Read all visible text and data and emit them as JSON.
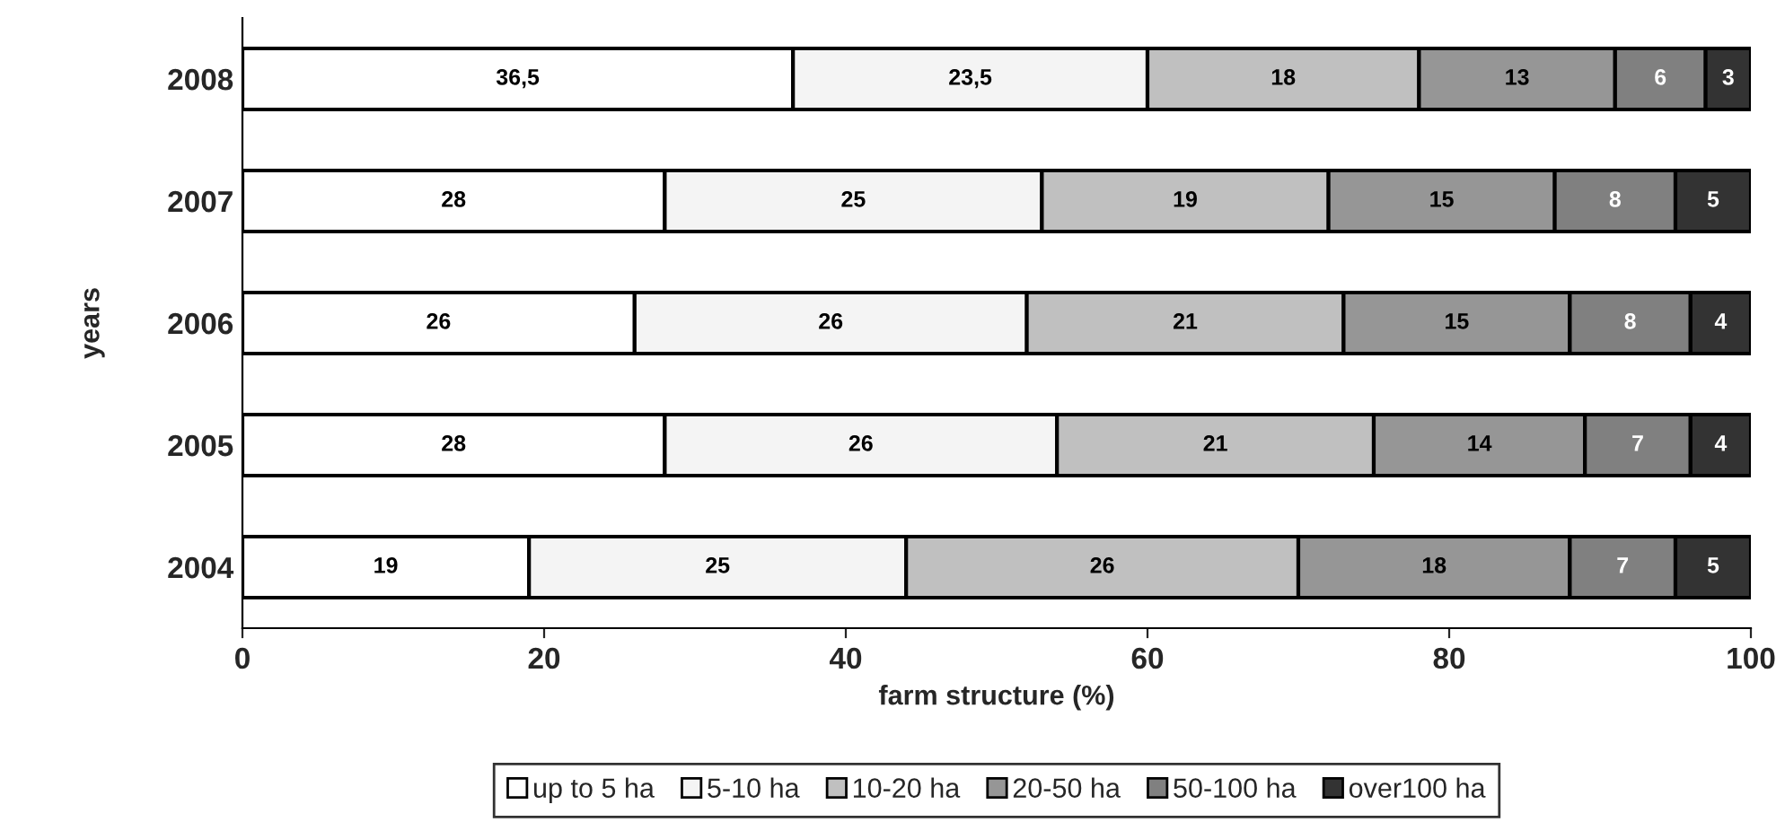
{
  "chart_data": {
    "type": "bar",
    "orientation": "horizontal",
    "stacked": true,
    "categories": [
      "2008",
      "2007",
      "2006",
      "2005",
      "2004"
    ],
    "series": [
      {
        "name": "up to 5 ha",
        "color": "#ffffff",
        "values": [
          36.5,
          28,
          26,
          28,
          19
        ],
        "value_labels": [
          "36,5",
          "28",
          "26",
          "28",
          "19"
        ]
      },
      {
        "name": "5-10 ha",
        "color": "#f4f4f4",
        "values": [
          23.5,
          25,
          26,
          26,
          25
        ],
        "value_labels": [
          "23,5",
          "25",
          "26",
          "26",
          "25"
        ]
      },
      {
        "name": "10-20 ha",
        "color": "#c0c0c0",
        "values": [
          18,
          19,
          21,
          21,
          26
        ],
        "value_labels": [
          "18",
          "19",
          "21",
          "21",
          "26"
        ]
      },
      {
        "name": "20-50 ha",
        "color": "#969696",
        "values": [
          13,
          15,
          15,
          14,
          18
        ],
        "value_labels": [
          "13",
          "15",
          "15",
          "14",
          "18"
        ]
      },
      {
        "name": "50-100 ha",
        "color": "#808080",
        "values": [
          6,
          8,
          8,
          7,
          7
        ],
        "value_labels": [
          "6",
          "8",
          "8",
          "7",
          "7"
        ]
      },
      {
        "name": "over100 ha",
        "color": "#333333",
        "values": [
          3,
          5,
          4,
          4,
          5
        ],
        "value_labels": [
          "3",
          "5",
          "4",
          "4",
          "5"
        ]
      }
    ],
    "xlabel": "farm structure (%)",
    "ylabel": "years",
    "xlim": [
      0,
      100
    ],
    "xticks": [
      0,
      20,
      40,
      60,
      80,
      100
    ],
    "legend": "bottom",
    "grid": false
  }
}
